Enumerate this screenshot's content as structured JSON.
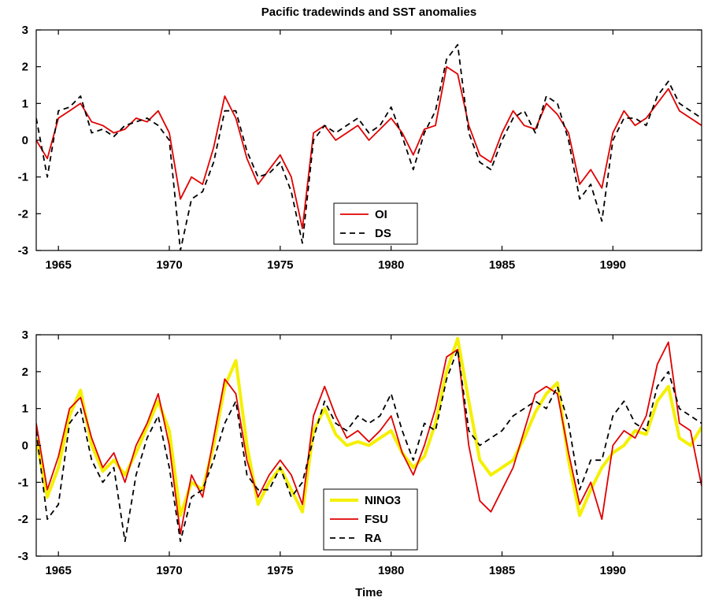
{
  "figure": {
    "title": "Pacific tradewinds and SST anomalies"
  },
  "chart_data": [
    {
      "type": "line",
      "title": "Pacific tradewinds and SST anomalies",
      "xlabel": "",
      "ylabel": "",
      "xlim": [
        1964.0,
        1994.0
      ],
      "ylim": [
        -3,
        3
      ],
      "xticks": [
        1965,
        1970,
        1975,
        1980,
        1985,
        1990
      ],
      "yticks": [
        -3,
        -2,
        -1,
        0,
        1,
        2,
        3
      ],
      "grid": false,
      "legend_position": "bottom-center",
      "series": [
        {
          "name": "OI",
          "color": "#e00000",
          "style": "solid",
          "x": [
            1964.0,
            1964.5,
            1965.0,
            1965.5,
            1966.0,
            1966.5,
            1967.0,
            1967.5,
            1968.0,
            1968.5,
            1969.0,
            1969.5,
            1970.0,
            1970.5,
            1971.0,
            1971.5,
            1972.0,
            1972.5,
            1973.0,
            1973.5,
            1974.0,
            1974.5,
            1975.0,
            1975.5,
            1976.0,
            1976.5,
            1977.0,
            1977.5,
            1978.0,
            1978.5,
            1979.0,
            1979.5,
            1980.0,
            1980.5,
            1981.0,
            1981.5,
            1982.0,
            1982.5,
            1983.0,
            1983.5,
            1984.0,
            1984.5,
            1985.0,
            1985.5,
            1986.0,
            1986.5,
            1987.0,
            1987.5,
            1988.0,
            1988.5,
            1989.0,
            1989.5,
            1990.0,
            1990.5,
            1991.0,
            1991.5,
            1992.0,
            1992.5,
            1993.0,
            1993.5,
            1994.0
          ],
          "y": [
            0.0,
            -0.5,
            0.6,
            0.8,
            1.0,
            0.5,
            0.4,
            0.2,
            0.3,
            0.6,
            0.5,
            0.8,
            0.2,
            -1.6,
            -1.0,
            -1.2,
            -0.2,
            1.2,
            0.6,
            -0.5,
            -1.2,
            -0.8,
            -0.4,
            -1.0,
            -2.4,
            0.2,
            0.4,
            0.0,
            0.2,
            0.4,
            0.0,
            0.3,
            0.6,
            0.2,
            -0.4,
            0.3,
            0.4,
            2.0,
            1.8,
            0.4,
            -0.4,
            -0.6,
            0.2,
            0.8,
            0.4,
            0.3,
            1.0,
            0.7,
            0.2,
            -1.2,
            -0.8,
            -1.3,
            0.2,
            0.8,
            0.4,
            0.6,
            1.0,
            1.4,
            0.8,
            0.6,
            0.4
          ]
        },
        {
          "name": "DS",
          "color": "#000000",
          "style": "dashed",
          "x": [
            1964.0,
            1964.5,
            1965.0,
            1965.5,
            1966.0,
            1966.5,
            1967.0,
            1967.5,
            1968.0,
            1968.5,
            1969.0,
            1969.5,
            1970.0,
            1970.5,
            1971.0,
            1971.5,
            1972.0,
            1972.5,
            1973.0,
            1973.5,
            1974.0,
            1974.5,
            1975.0,
            1975.5,
            1976.0,
            1976.5,
            1977.0,
            1977.5,
            1978.0,
            1978.5,
            1979.0,
            1979.5,
            1980.0,
            1980.5,
            1981.0,
            1981.5,
            1982.0,
            1982.5,
            1983.0,
            1983.5,
            1984.0,
            1984.5,
            1985.0,
            1985.5,
            1986.0,
            1986.5,
            1987.0,
            1987.5,
            1988.0,
            1988.5,
            1989.0,
            1989.5,
            1990.0,
            1990.5,
            1991.0,
            1991.5,
            1992.0,
            1992.5,
            1993.0,
            1993.5,
            1994.0
          ],
          "y": [
            0.6,
            -1.0,
            0.8,
            0.9,
            1.2,
            0.2,
            0.3,
            0.1,
            0.4,
            0.5,
            0.6,
            0.4,
            0.0,
            -3.0,
            -1.6,
            -1.4,
            -0.6,
            0.8,
            0.8,
            -0.3,
            -1.0,
            -0.9,
            -0.6,
            -1.4,
            -2.8,
            0.0,
            0.4,
            0.2,
            0.4,
            0.6,
            0.2,
            0.4,
            0.9,
            0.1,
            -0.8,
            0.2,
            0.8,
            2.2,
            2.6,
            0.2,
            -0.6,
            -0.8,
            0.0,
            0.6,
            0.8,
            0.2,
            1.2,
            1.0,
            0.0,
            -1.6,
            -1.2,
            -2.2,
            0.0,
            0.6,
            0.6,
            0.4,
            1.2,
            1.6,
            1.0,
            0.8,
            0.6
          ]
        }
      ]
    },
    {
      "type": "line",
      "title": "",
      "xlabel": "Time",
      "ylabel": "",
      "xlim": [
        1964.0,
        1994.0
      ],
      "ylim": [
        -3,
        3
      ],
      "xticks": [
        1965,
        1970,
        1975,
        1980,
        1985,
        1990
      ],
      "yticks": [
        -3,
        -2,
        -1,
        0,
        1,
        2,
        3
      ],
      "grid": false,
      "legend_position": "bottom-center",
      "series": [
        {
          "name": "NINO3",
          "color": "#f4f000",
          "style": "thick-solid",
          "x": [
            1964.0,
            1964.5,
            1965.0,
            1965.5,
            1966.0,
            1966.5,
            1967.0,
            1967.5,
            1968.0,
            1968.5,
            1969.0,
            1969.5,
            1970.0,
            1970.5,
            1971.0,
            1971.5,
            1972.0,
            1972.5,
            1973.0,
            1973.5,
            1974.0,
            1974.5,
            1975.0,
            1975.5,
            1976.0,
            1976.5,
            1977.0,
            1977.5,
            1978.0,
            1978.5,
            1979.0,
            1979.5,
            1980.0,
            1980.5,
            1981.0,
            1981.5,
            1982.0,
            1982.5,
            1983.0,
            1983.5,
            1984.0,
            1984.5,
            1985.0,
            1985.5,
            1986.0,
            1986.5,
            1987.0,
            1987.5,
            1988.0,
            1988.5,
            1989.0,
            1989.5,
            1990.0,
            1990.5,
            1991.0,
            1991.5,
            1992.0,
            1992.5,
            1993.0,
            1993.5,
            1994.0
          ],
          "y": [
            0.2,
            -1.4,
            -0.6,
            0.8,
            1.5,
            0.0,
            -0.7,
            -0.4,
            -0.8,
            -0.2,
            0.5,
            1.2,
            0.4,
            -1.9,
            -1.0,
            -1.2,
            0.0,
            1.6,
            2.3,
            0.0,
            -1.6,
            -1.0,
            -0.6,
            -1.2,
            -1.8,
            0.4,
            1.0,
            0.3,
            0.0,
            0.1,
            0.0,
            0.2,
            0.4,
            -0.2,
            -0.6,
            -0.3,
            0.6,
            2.0,
            2.9,
            1.2,
            -0.4,
            -0.8,
            -0.6,
            -0.4,
            0.2,
            0.9,
            1.4,
            1.7,
            -0.4,
            -1.9,
            -1.2,
            -0.6,
            -0.2,
            0.0,
            0.4,
            0.3,
            1.2,
            1.6,
            0.2,
            0.0,
            0.5
          ]
        },
        {
          "name": "FSU",
          "color": "#e00000",
          "style": "solid",
          "x": [
            1964.0,
            1964.5,
            1965.0,
            1965.5,
            1966.0,
            1966.5,
            1967.0,
            1967.5,
            1968.0,
            1968.5,
            1969.0,
            1969.5,
            1970.0,
            1970.5,
            1971.0,
            1971.5,
            1972.0,
            1972.5,
            1973.0,
            1973.5,
            1974.0,
            1974.5,
            1975.0,
            1975.5,
            1976.0,
            1976.5,
            1977.0,
            1977.5,
            1978.0,
            1978.5,
            1979.0,
            1979.5,
            1980.0,
            1980.5,
            1981.0,
            1981.5,
            1982.0,
            1982.5,
            1983.0,
            1983.5,
            1984.0,
            1984.5,
            1985.0,
            1985.5,
            1986.0,
            1986.5,
            1987.0,
            1987.5,
            1988.0,
            1988.5,
            1989.0,
            1989.5,
            1990.0,
            1990.5,
            1991.0,
            1991.5,
            1992.0,
            1992.5,
            1993.0,
            1993.5,
            1994.0
          ],
          "y": [
            0.6,
            -1.2,
            -0.3,
            1.0,
            1.3,
            0.2,
            -0.6,
            -0.2,
            -1.0,
            0.0,
            0.6,
            1.4,
            0.0,
            -2.4,
            -0.8,
            -1.4,
            0.2,
            1.8,
            1.4,
            -0.4,
            -1.4,
            -0.8,
            -0.4,
            -0.8,
            -1.6,
            0.8,
            1.6,
            0.8,
            0.2,
            0.4,
            0.1,
            0.4,
            0.8,
            -0.2,
            -0.8,
            0.0,
            1.0,
            2.4,
            2.6,
            0.0,
            -1.5,
            -1.8,
            -1.2,
            -0.6,
            0.4,
            1.4,
            1.6,
            1.4,
            -0.2,
            -1.6,
            -1.0,
            -2.0,
            0.0,
            0.4,
            0.2,
            0.8,
            2.2,
            2.8,
            0.6,
            0.4,
            -1.1
          ]
        },
        {
          "name": "RA",
          "color": "#000000",
          "style": "dashed",
          "x": [
            1964.0,
            1964.5,
            1965.0,
            1965.5,
            1966.0,
            1966.5,
            1967.0,
            1967.5,
            1968.0,
            1968.5,
            1969.0,
            1969.5,
            1970.0,
            1970.5,
            1971.0,
            1971.5,
            1972.0,
            1972.5,
            1973.0,
            1973.5,
            1974.0,
            1974.5,
            1975.0,
            1975.5,
            1976.0,
            1976.5,
            1977.0,
            1977.5,
            1978.0,
            1978.5,
            1979.0,
            1979.5,
            1980.0,
            1980.5,
            1981.0,
            1981.5,
            1982.0,
            1982.5,
            1983.0,
            1983.5,
            1984.0,
            1984.5,
            1985.0,
            1985.5,
            1986.0,
            1986.5,
            1987.0,
            1987.5,
            1988.0,
            1988.5,
            1989.0,
            1989.5,
            1990.0,
            1990.5,
            1991.0,
            1991.5,
            1992.0,
            1992.5,
            1993.0,
            1993.5,
            1994.0
          ],
          "y": [
            0.4,
            -2.0,
            -1.6,
            0.6,
            1.0,
            -0.4,
            -1.0,
            -0.6,
            -2.6,
            -0.8,
            0.2,
            0.8,
            -0.6,
            -2.6,
            -1.4,
            -1.2,
            -0.4,
            0.6,
            1.2,
            -0.8,
            -1.2,
            -1.2,
            -0.6,
            -1.4,
            -1.0,
            0.2,
            1.2,
            0.6,
            0.4,
            0.8,
            0.6,
            0.8,
            1.4,
            0.4,
            -0.4,
            0.6,
            0.4,
            1.8,
            2.6,
            0.4,
            0.0,
            0.2,
            0.4,
            0.8,
            1.0,
            1.2,
            1.0,
            1.6,
            0.6,
            -1.2,
            -0.4,
            -0.4,
            0.8,
            1.2,
            0.6,
            0.4,
            1.6,
            2.0,
            1.0,
            0.8,
            0.6
          ]
        }
      ]
    }
  ]
}
